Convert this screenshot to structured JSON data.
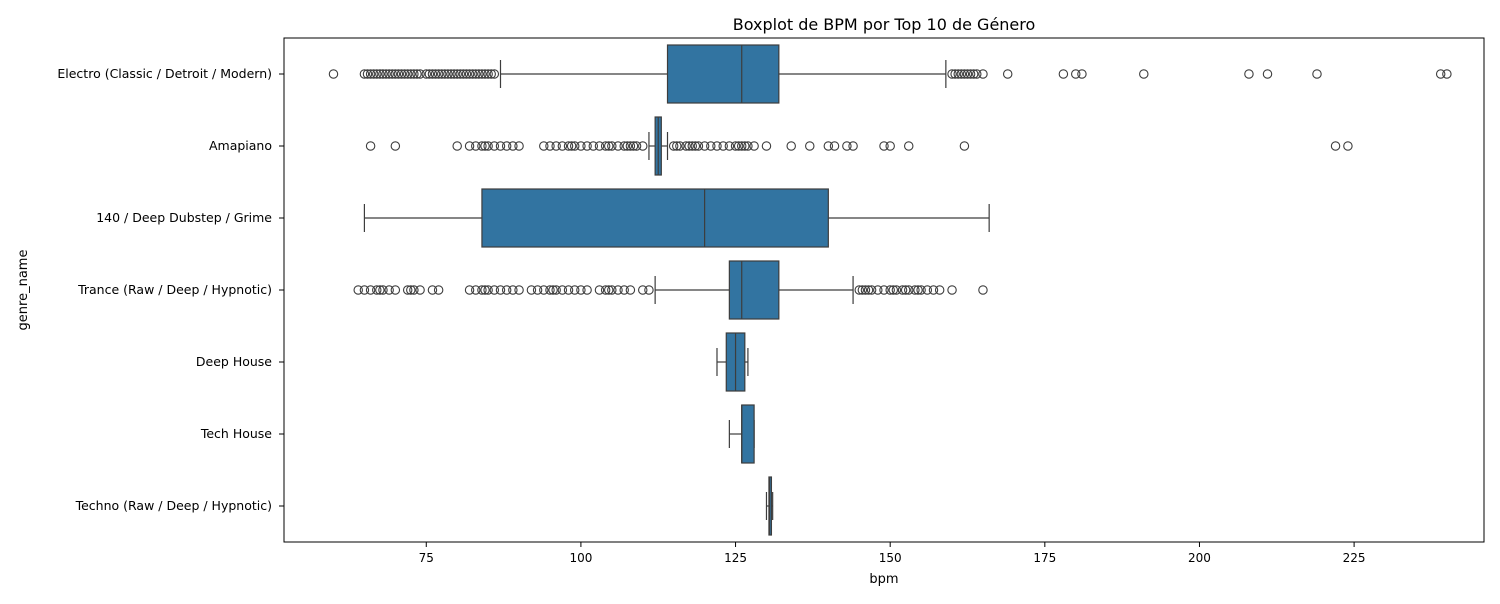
{
  "chart_data": {
    "type": "boxplot",
    "title": "Boxplot de BPM por Top 10 de Género",
    "xlabel": "bpm",
    "ylabel": "genre_name",
    "xlim": [
      52,
      246
    ],
    "x_ticks": [
      75,
      100,
      125,
      150,
      175,
      200,
      225
    ],
    "grid": false,
    "box_color": "#3274a1",
    "line_color": "#3d3d3d",
    "categories": [
      "Electro (Classic / Detroit / Modern)",
      "Amapiano",
      "140 / Deep Dubstep / Grime",
      "Trance (Raw / Deep / Hypnotic)",
      "Deep House",
      "Tech House",
      "Techno (Raw / Deep / Hypnotic)"
    ],
    "boxes": [
      {
        "whisker_low": 87,
        "q1": 114,
        "median": 126,
        "q3": 132,
        "whisker_high": 159,
        "outliers": [
          60,
          65,
          65.5,
          66,
          66.5,
          67,
          67.5,
          68,
          68.5,
          69,
          69.5,
          70,
          70.5,
          71,
          71.5,
          72,
          72.5,
          73,
          73.5,
          74,
          75,
          75.5,
          76,
          76.5,
          77,
          77.5,
          78,
          78.5,
          79,
          79.5,
          80,
          80.5,
          81,
          81.5,
          82,
          82.5,
          83,
          83.5,
          84,
          84.5,
          85,
          85.5,
          86,
          160,
          160.5,
          161,
          161.5,
          162,
          162.5,
          163,
          163.5,
          164,
          165,
          169,
          178,
          180,
          181,
          191,
          208,
          211,
          219,
          239,
          240
        ]
      },
      {
        "whisker_low": 111,
        "q1": 112,
        "median": 112.5,
        "q3": 113,
        "whisker_high": 114,
        "outliers": [
          66,
          70,
          80,
          82,
          83,
          84,
          84.5,
          85,
          86,
          87,
          88,
          89,
          90,
          94,
          95,
          96,
          97,
          98,
          98.5,
          99,
          100,
          101,
          102,
          103,
          104,
          104.5,
          105,
          106,
          107,
          107.5,
          108,
          108.5,
          109,
          110,
          115,
          115.5,
          116,
          117,
          117.5,
          118,
          118.5,
          119,
          120,
          121,
          122,
          123,
          124,
          125,
          125.5,
          126,
          126.5,
          127,
          128,
          130,
          134,
          137,
          140,
          141,
          143,
          144,
          149,
          150,
          153,
          162,
          222,
          224
        ]
      },
      {
        "whisker_low": 65,
        "q1": 84,
        "median": 120,
        "q3": 140,
        "whisker_high": 166,
        "outliers": []
      },
      {
        "whisker_low": 112,
        "q1": 124,
        "median": 126,
        "q3": 132,
        "whisker_high": 144,
        "outliers": [
          64,
          65,
          66,
          67,
          67.5,
          68,
          69,
          70,
          72,
          72.5,
          73,
          74,
          76,
          77,
          82,
          83,
          84,
          84.5,
          85,
          86,
          87,
          88,
          89,
          90,
          92,
          93,
          94,
          95,
          95.5,
          96,
          97,
          98,
          99,
          100,
          101,
          103,
          104,
          104.5,
          105,
          106,
          107,
          108,
          110,
          111,
          145,
          145.5,
          146,
          146.5,
          147,
          148,
          149,
          150,
          150.5,
          151,
          152,
          152.5,
          153,
          154,
          154.5,
          155,
          156,
          157,
          158,
          160,
          165
        ]
      },
      {
        "whisker_low": 122,
        "q1": 123.5,
        "median": 125,
        "q3": 126.5,
        "whisker_high": 127,
        "outliers": []
      },
      {
        "whisker_low": 124,
        "q1": 126,
        "median": 126,
        "q3": 128,
        "whisker_high": 128,
        "outliers": []
      },
      {
        "whisker_low": 130,
        "q1": 130.4,
        "median": 130.5,
        "q3": 130.8,
        "whisker_high": 131,
        "outliers": []
      }
    ]
  }
}
